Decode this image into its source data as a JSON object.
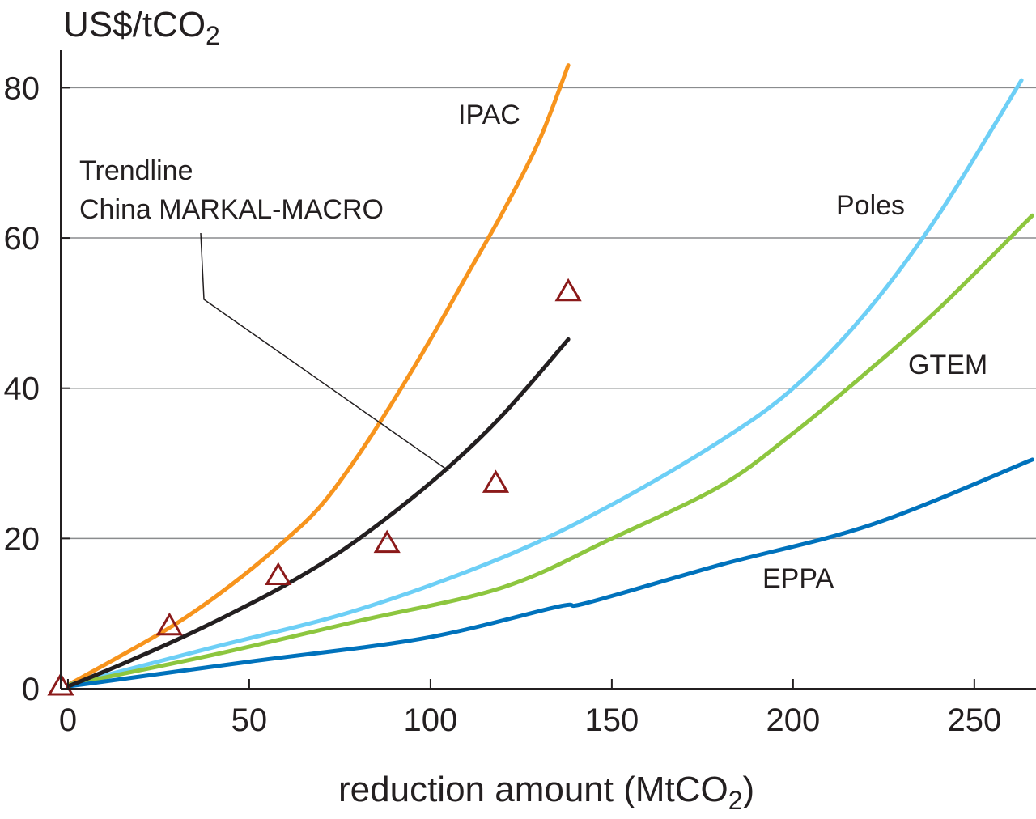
{
  "chart_data": {
    "type": "line",
    "title": "",
    "xlabel": {
      "main": "reduction amount (MtCO",
      "sub": "2",
      "tail": ")"
    },
    "ylabel": {
      "main": "US$/tCO",
      "sub": "2"
    },
    "xlim": [
      -2,
      267
    ],
    "ylim": [
      0,
      85
    ],
    "xticks": [
      0,
      50,
      100,
      150,
      200,
      250
    ],
    "yticks": [
      0,
      20,
      40,
      60,
      80
    ],
    "grid": "horizontal",
    "series": [
      {
        "name": "IPAC",
        "color": "#f7941d",
        "points": [
          [
            0,
            0.5
          ],
          [
            15,
            4.5
          ],
          [
            30,
            8.7
          ],
          [
            45,
            13.8
          ],
          [
            60,
            19.8
          ],
          [
            70,
            24.5
          ],
          [
            80,
            31.0
          ],
          [
            90,
            38.5
          ],
          [
            100,
            46.5
          ],
          [
            110,
            55.0
          ],
          [
            120,
            63.5
          ],
          [
            130,
            73.0
          ],
          [
            138,
            83.0
          ]
        ]
      },
      {
        "name": "Poles",
        "color": "#6dcff6",
        "points": [
          [
            0,
            0.5
          ],
          [
            40,
            5.5
          ],
          [
            80,
            10.5
          ],
          [
            120,
            17.5
          ],
          [
            150,
            24.5
          ],
          [
            180,
            33.0
          ],
          [
            200,
            40.0
          ],
          [
            220,
            50.0
          ],
          [
            240,
            63.0
          ],
          [
            263,
            81.0
          ]
        ]
      },
      {
        "name": "GTEM",
        "color": "#8dc63f",
        "points": [
          [
            0,
            0.5
          ],
          [
            40,
            4.5
          ],
          [
            80,
            9.0
          ],
          [
            120,
            13.5
          ],
          [
            150,
            20.0
          ],
          [
            180,
            27.0
          ],
          [
            200,
            34.0
          ],
          [
            220,
            42.0
          ],
          [
            240,
            50.5
          ],
          [
            266,
            63.0
          ]
        ]
      },
      {
        "name": "EPPA",
        "color": "#0072bc",
        "points": [
          [
            0,
            0.3
          ],
          [
            50,
            3.6
          ],
          [
            98,
            6.7
          ],
          [
            135,
            10.9
          ],
          [
            143,
            11.4
          ],
          [
            180,
            16.5
          ],
          [
            222,
            21.9
          ],
          [
            266,
            30.5
          ]
        ]
      },
      {
        "name": "",
        "color": "#231f20",
        "points": [
          [
            0,
            0.3
          ],
          [
            15,
            3.3
          ],
          [
            30,
            6.5
          ],
          [
            45,
            10.0
          ],
          [
            60,
            13.8
          ],
          [
            75,
            18.2
          ],
          [
            90,
            23.5
          ],
          [
            105,
            29.5
          ],
          [
            120,
            36.5
          ],
          [
            138,
            46.5
          ]
        ]
      }
    ],
    "markers": {
      "shape": "triangle",
      "color": "#8b1a1a",
      "points": [
        [
          -2,
          0
        ],
        [
          28,
          8
        ],
        [
          58,
          14.7
        ],
        [
          88,
          19
        ],
        [
          118,
          27
        ],
        [
          138,
          52.5
        ]
      ]
    },
    "annotation": {
      "lines": [
        "Trendline",
        "China MARKAL-MACRO"
      ],
      "leader_to": [
        105,
        29
      ]
    }
  }
}
